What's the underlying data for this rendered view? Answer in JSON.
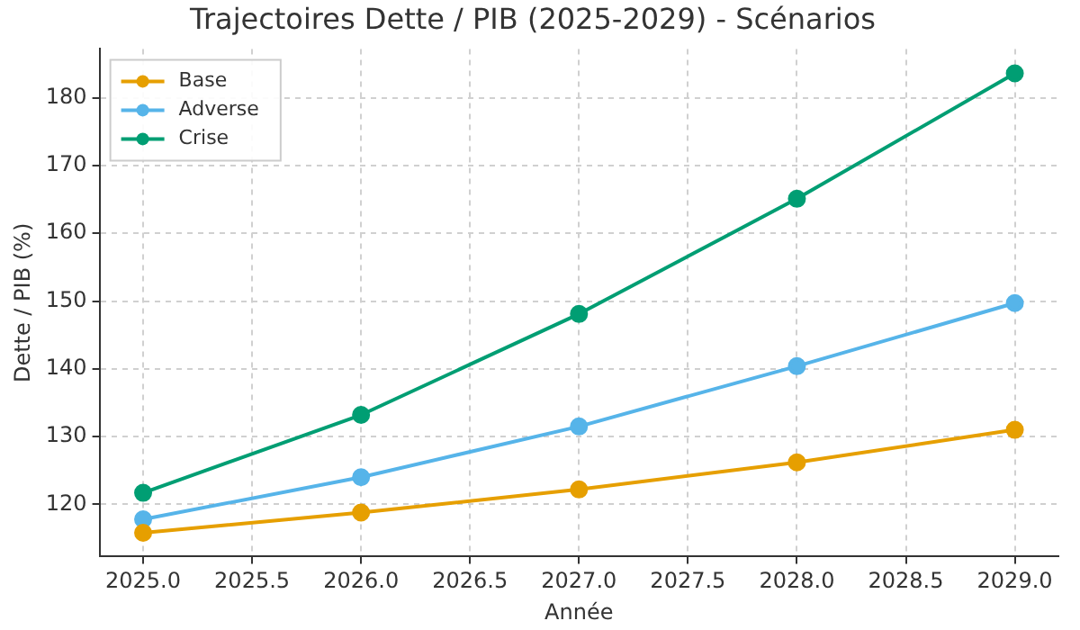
{
  "chart_data": {
    "type": "line",
    "title": "Trajectoires Dette / PIB (2025-2029) - Scénarios",
    "xlabel": "Année",
    "ylabel": "Dette / PIB (%)",
    "x": [
      2025,
      2026,
      2027,
      2028,
      2029
    ],
    "series": [
      {
        "name": "Base",
        "color": "#e69f00",
        "values": [
          115.8,
          118.8,
          122.2,
          126.2,
          131.0
        ]
      },
      {
        "name": "Adverse",
        "color": "#56b4e9",
        "values": [
          117.8,
          124.0,
          131.5,
          140.4,
          149.7
        ]
      },
      {
        "name": "Crise",
        "color": "#009e73",
        "values": [
          121.7,
          133.2,
          148.1,
          165.1,
          183.6
        ]
      }
    ],
    "xlim": [
      2024.8,
      2029.2
    ],
    "xticks": [
      {
        "value": 2025,
        "label": "2025.0"
      },
      {
        "value": 2025.5,
        "label": "2025.5"
      },
      {
        "value": 2026,
        "label": "2026.0"
      },
      {
        "value": 2026.5,
        "label": "2026.5"
      },
      {
        "value": 2027,
        "label": "2027.0"
      },
      {
        "value": 2027.5,
        "label": "2027.5"
      },
      {
        "value": 2028,
        "label": "2028.0"
      },
      {
        "value": 2028.5,
        "label": "2028.5"
      },
      {
        "value": 2029,
        "label": "2029.0"
      }
    ],
    "ylim": [
      112.3,
      187.2
    ],
    "yticks": [
      120,
      130,
      140,
      150,
      160,
      170,
      180
    ],
    "grid": true,
    "legend": "top left",
    "marker": "circle",
    "line_style": "solid"
  }
}
